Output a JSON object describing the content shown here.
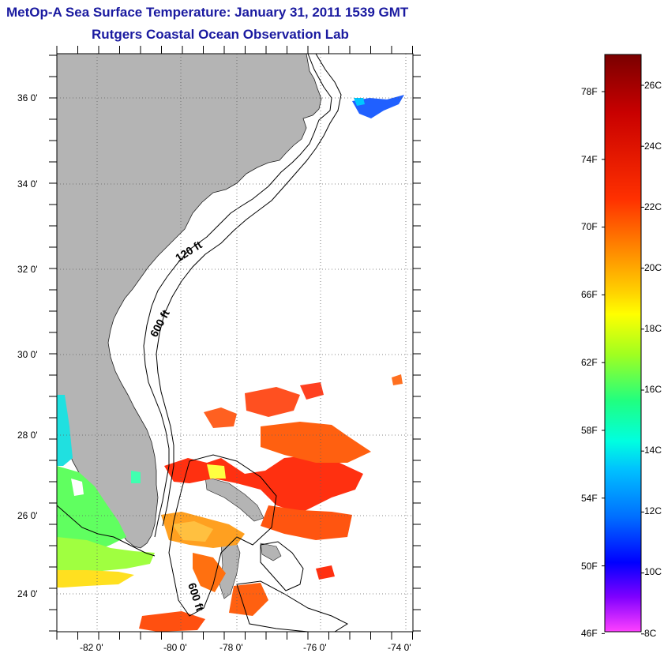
{
  "header": {
    "title": "MetOp-A Sea Surface Temperature:  January 31, 2011 1539 GMT",
    "subtitle": "Rutgers Coastal Ocean Observation Lab"
  },
  "map": {
    "lat_labels": [
      "36 0'",
      "34 0'",
      "32 0'",
      "30 0'",
      "28 0'",
      "26 0'",
      "24 0'"
    ],
    "lon_labels": [
      "-82 0'",
      "-80 0'",
      "-78 0'",
      "-76 0'",
      "-74 0'"
    ],
    "contour_labels": [
      "120 ft",
      "600 ft",
      "600 ft"
    ],
    "colors": {
      "land": "#b4b4b4",
      "ocean": "#ffffff",
      "gridline": "#606060"
    }
  },
  "colorbar": {
    "fahrenheit_labels": [
      "78F",
      "74F",
      "70F",
      "66F",
      "62F",
      "58F",
      "54F",
      "50F",
      "46F"
    ],
    "celsius_labels": [
      "26C",
      "24C",
      "22C",
      "20C",
      "18C",
      "16C",
      "14C",
      "12C",
      "10C",
      "8C"
    ],
    "colors_top_to_bottom": [
      "#7a0000",
      "#c80000",
      "#ff3000",
      "#ff8000",
      "#ffd000",
      "#ffff00",
      "#a0ff20",
      "#20ff80",
      "#00ffe0",
      "#00c0ff",
      "#0070ff",
      "#0000ff",
      "#8000ff",
      "#ff40ff"
    ]
  }
}
